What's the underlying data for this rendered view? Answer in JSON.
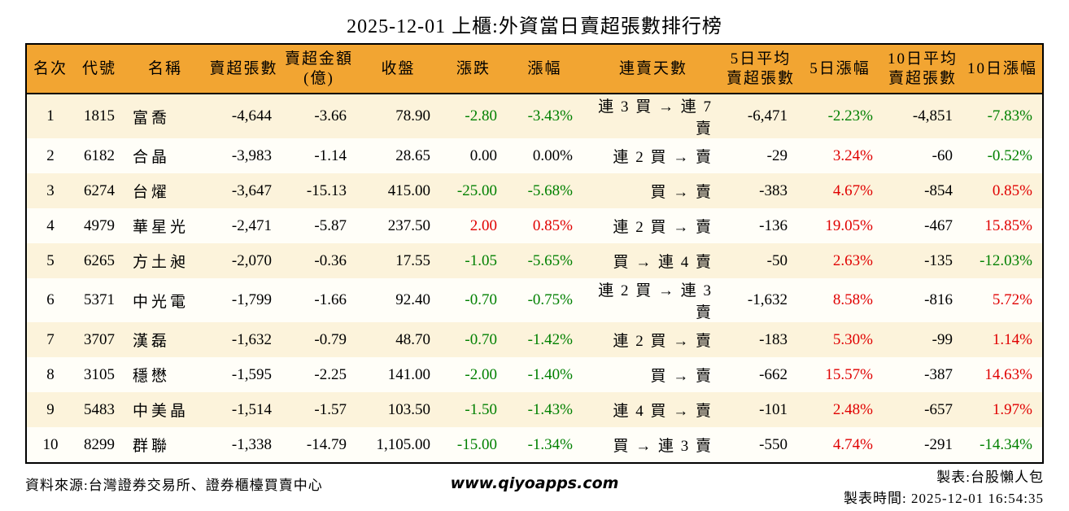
{
  "title": "2025-12-01 上櫃:外資當日賣超張數排行榜",
  "colors": {
    "header_bg": "#F2A532",
    "row_odd_bg": "#FCF3DB",
    "row_even_bg": "#FFFEF8",
    "up_red": "#E00000",
    "down_green": "#008000",
    "border": "#000000"
  },
  "table": {
    "columns": [
      {
        "key": "rank",
        "label": "名次",
        "colored": false
      },
      {
        "key": "code",
        "label": "代號",
        "colored": false
      },
      {
        "key": "name",
        "label": "名稱",
        "colored": false
      },
      {
        "key": "sell_volume",
        "label": "賣超張數",
        "colored": false
      },
      {
        "key": "sell_amount",
        "label": "賣超金額\n(億)",
        "colored": false
      },
      {
        "key": "close",
        "label": "收盤",
        "colored": false
      },
      {
        "key": "change",
        "label": "漲跌",
        "colored": true
      },
      {
        "key": "change_pct",
        "label": "漲幅",
        "colored": true
      },
      {
        "key": "streak",
        "label": "連賣天數",
        "colored": false
      },
      {
        "key": "avg5",
        "label": "5日平均\n賣超張數",
        "colored": false
      },
      {
        "key": "pct5",
        "label": "5日漲幅",
        "colored": true
      },
      {
        "key": "avg10",
        "label": "10日平均\n賣超張數",
        "colored": false
      },
      {
        "key": "pct10",
        "label": "10日漲幅",
        "colored": true
      }
    ],
    "rows": [
      {
        "rank": "1",
        "code": "1815",
        "name": "富喬",
        "sell_volume": "-4,644",
        "sell_amount": "-3.66",
        "close": "78.90",
        "change": "-2.80",
        "change_pct": "-3.43%",
        "streak": "連 3 買 → 連 7 賣",
        "avg5": "-6,471",
        "pct5": "-2.23%",
        "avg10": "-4,851",
        "pct10": "-7.83%"
      },
      {
        "rank": "2",
        "code": "6182",
        "name": "合晶",
        "sell_volume": "-3,983",
        "sell_amount": "-1.14",
        "close": "28.65",
        "change": "0.00",
        "change_pct": "0.00%",
        "streak": "連 2 買 → 賣",
        "avg5": "-29",
        "pct5": "3.24%",
        "avg10": "-60",
        "pct10": "-0.52%"
      },
      {
        "rank": "3",
        "code": "6274",
        "name": "台燿",
        "sell_volume": "-3,647",
        "sell_amount": "-15.13",
        "close": "415.00",
        "change": "-25.00",
        "change_pct": "-5.68%",
        "streak": "買 → 賣",
        "avg5": "-383",
        "pct5": "4.67%",
        "avg10": "-854",
        "pct10": "0.85%"
      },
      {
        "rank": "4",
        "code": "4979",
        "name": "華星光",
        "sell_volume": "-2,471",
        "sell_amount": "-5.87",
        "close": "237.50",
        "change": "2.00",
        "change_pct": "0.85%",
        "streak": "連 2 買 → 賣",
        "avg5": "-136",
        "pct5": "19.05%",
        "avg10": "-467",
        "pct10": "15.85%"
      },
      {
        "rank": "5",
        "code": "6265",
        "name": "方土昶",
        "sell_volume": "-2,070",
        "sell_amount": "-0.36",
        "close": "17.55",
        "change": "-1.05",
        "change_pct": "-5.65%",
        "streak": "買 → 連 4 賣",
        "avg5": "-50",
        "pct5": "2.63%",
        "avg10": "-135",
        "pct10": "-12.03%"
      },
      {
        "rank": "6",
        "code": "5371",
        "name": "中光電",
        "sell_volume": "-1,799",
        "sell_amount": "-1.66",
        "close": "92.40",
        "change": "-0.70",
        "change_pct": "-0.75%",
        "streak": "連 2 買 → 連 3 賣",
        "avg5": "-1,632",
        "pct5": "8.58%",
        "avg10": "-816",
        "pct10": "5.72%"
      },
      {
        "rank": "7",
        "code": "3707",
        "name": "漢磊",
        "sell_volume": "-1,632",
        "sell_amount": "-0.79",
        "close": "48.70",
        "change": "-0.70",
        "change_pct": "-1.42%",
        "streak": "連 2 買 → 賣",
        "avg5": "-183",
        "pct5": "5.30%",
        "avg10": "-99",
        "pct10": "1.14%"
      },
      {
        "rank": "8",
        "code": "3105",
        "name": "穩懋",
        "sell_volume": "-1,595",
        "sell_amount": "-2.25",
        "close": "141.00",
        "change": "-2.00",
        "change_pct": "-1.40%",
        "streak": "買 → 賣",
        "avg5": "-662",
        "pct5": "15.57%",
        "avg10": "-387",
        "pct10": "14.63%"
      },
      {
        "rank": "9",
        "code": "5483",
        "name": "中美晶",
        "sell_volume": "-1,514",
        "sell_amount": "-1.57",
        "close": "103.50",
        "change": "-1.50",
        "change_pct": "-1.43%",
        "streak": "連 4 買 → 賣",
        "avg5": "-101",
        "pct5": "2.48%",
        "avg10": "-657",
        "pct10": "1.97%"
      },
      {
        "rank": "10",
        "code": "8299",
        "name": "群聯",
        "sell_volume": "-1,338",
        "sell_amount": "-14.79",
        "close": "1,105.00",
        "change": "-15.00",
        "change_pct": "-1.34%",
        "streak": "買 → 連 3 賣",
        "avg5": "-550",
        "pct5": "4.74%",
        "avg10": "-291",
        "pct10": "-14.34%"
      }
    ]
  },
  "footer": {
    "source": "資料來源:台灣證券交易所、證券櫃檯買賣中心",
    "website": "www.qiyoapps.com",
    "author": "製表:台股懶人包",
    "timestamp": "製表時間: 2025-12-01 16:54:35"
  }
}
